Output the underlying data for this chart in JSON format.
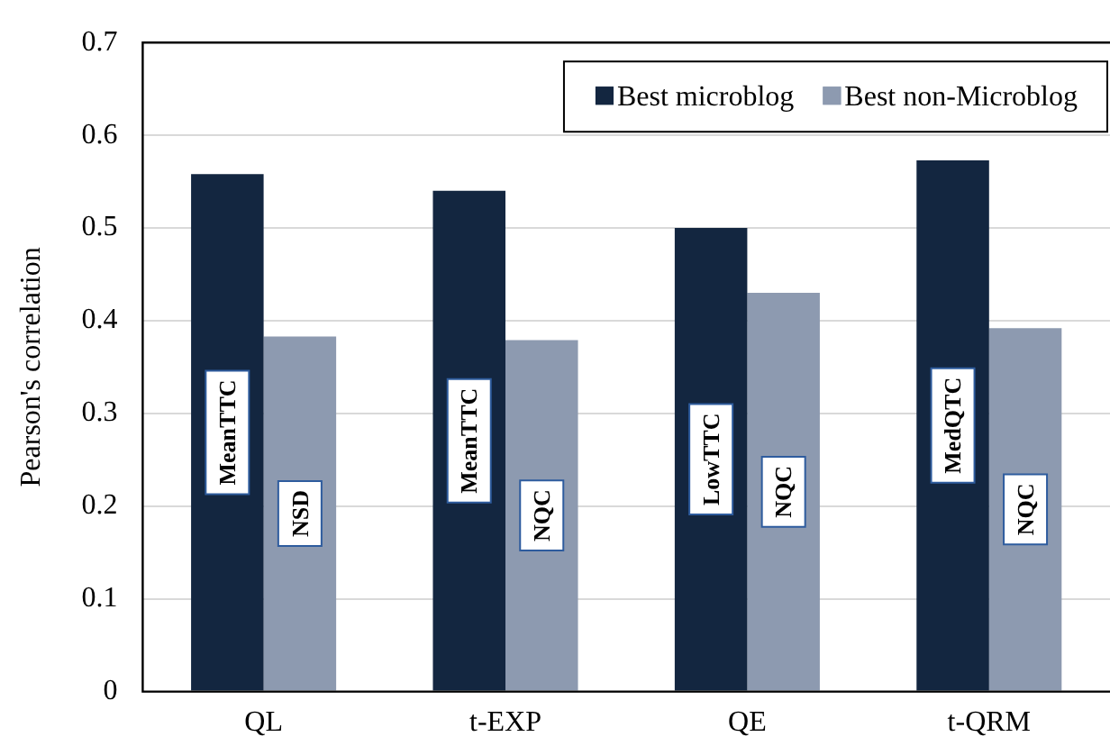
{
  "chart_data": {
    "type": "bar",
    "ylabel": "Pearson's correlation",
    "categories": [
      "QL",
      "t-EXP",
      "QE",
      "t-QRM"
    ],
    "series": [
      {
        "name": "Best microblog",
        "color": "#132640",
        "values": [
          0.558,
          0.54,
          0.5,
          0.573
        ],
        "value_labels": [
          "MeanTTC",
          "MeanTTC",
          "LowTTC",
          "MedQTC"
        ]
      },
      {
        "name": "Best non-Microblog",
        "color": "#8d9ab0",
        "values": [
          0.383,
          0.379,
          0.43,
          0.392
        ],
        "value_labels": [
          "NSD",
          "NQC",
          "NQC",
          "NQC"
        ]
      }
    ],
    "ylim": [
      0,
      0.7
    ],
    "yticks": [
      0,
      0.1,
      0.2,
      0.3,
      0.4,
      0.5,
      0.6,
      0.7
    ],
    "grid": "y",
    "legend": "top right"
  }
}
